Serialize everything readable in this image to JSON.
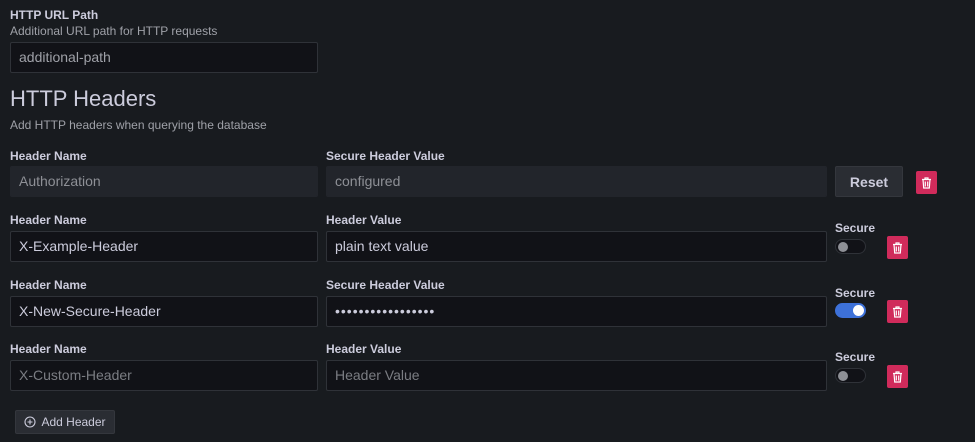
{
  "url_path": {
    "label": "HTTP URL Path",
    "description": "Additional URL path for HTTP requests",
    "value": "additional-path"
  },
  "headers": {
    "title": "HTTP Headers",
    "description": "Add HTTP headers when querying the database",
    "rows": [
      {
        "name_label": "Header Name",
        "value_label": "Secure Header Value",
        "name": "Authorization",
        "value": "configured",
        "reset_label": "Reset"
      },
      {
        "name_label": "Header Name",
        "value_label": "Header Value",
        "name": "X-Example-Header",
        "value": "plain text value",
        "secure_label": "Secure",
        "secure": false
      },
      {
        "name_label": "Header Name",
        "value_label": "Secure Header Value",
        "name": "X-New-Secure-Header",
        "value": "•••••••••••••••••",
        "secure_label": "Secure",
        "secure": true
      },
      {
        "name_label": "Header Name",
        "value_label": "Header Value",
        "name_placeholder": "X-Custom-Header",
        "value_placeholder": "Header Value",
        "secure_label": "Secure",
        "secure": false
      }
    ],
    "add_label": "Add Header"
  },
  "colors": {
    "danger": "#d02b5b",
    "toggle_on": "#3d71d9",
    "background": "#181b1f"
  }
}
